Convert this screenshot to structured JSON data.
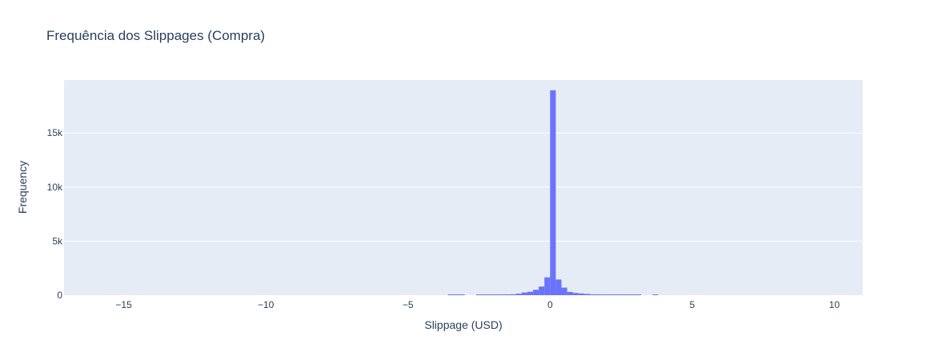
{
  "chart_data": {
    "type": "bar",
    "title": "Frequência dos Slippages (Compra)",
    "xlabel": "Slippage (USD)",
    "ylabel": "Frequency",
    "xlim": [
      -17.1,
      11.0
    ],
    "ylim": [
      0,
      19900
    ],
    "bin_width": 0.2,
    "x_ticks": [
      -15,
      -10,
      -5,
      0,
      5,
      10
    ],
    "x_tick_labels": [
      "−15",
      "−10",
      "−5",
      "0",
      "5",
      "10"
    ],
    "y_ticks": [
      0,
      5000,
      10000,
      15000
    ],
    "y_tick_labels": [
      "0",
      "5k",
      "10k",
      "15k"
    ],
    "grid": true,
    "bins": [
      {
        "x0": -3.6,
        "count": 40
      },
      {
        "x0": -3.4,
        "count": 40
      },
      {
        "x0": -3.2,
        "count": 40
      },
      {
        "x0": -2.6,
        "count": 40
      },
      {
        "x0": -2.4,
        "count": 40
      },
      {
        "x0": -2.2,
        "count": 40
      },
      {
        "x0": -2.0,
        "count": 50
      },
      {
        "x0": -1.8,
        "count": 60
      },
      {
        "x0": -1.6,
        "count": 70
      },
      {
        "x0": -1.4,
        "count": 90
      },
      {
        "x0": -1.2,
        "count": 140
      },
      {
        "x0": -1.0,
        "count": 250
      },
      {
        "x0": -0.8,
        "count": 320
      },
      {
        "x0": -0.6,
        "count": 500
      },
      {
        "x0": -0.4,
        "count": 800
      },
      {
        "x0": -0.2,
        "count": 1650
      },
      {
        "x0": 0.0,
        "count": 18950
      },
      {
        "x0": 0.2,
        "count": 1450
      },
      {
        "x0": 0.4,
        "count": 700
      },
      {
        "x0": 0.6,
        "count": 300
      },
      {
        "x0": 0.8,
        "count": 210
      },
      {
        "x0": 1.0,
        "count": 160
      },
      {
        "x0": 1.2,
        "count": 120
      },
      {
        "x0": 1.4,
        "count": 80
      },
      {
        "x0": 1.6,
        "count": 60
      },
      {
        "x0": 1.8,
        "count": 50
      },
      {
        "x0": 2.0,
        "count": 40
      },
      {
        "x0": 2.2,
        "count": 40
      },
      {
        "x0": 2.4,
        "count": 40
      },
      {
        "x0": 2.6,
        "count": 40
      },
      {
        "x0": 2.8,
        "count": 40
      },
      {
        "x0": 3.0,
        "count": 40
      },
      {
        "x0": 3.6,
        "count": 40
      }
    ],
    "colors": {
      "bar": "#636efa",
      "plot_bg": "#e5ecf6",
      "grid": "#ffffff",
      "text": "#2a3f5f"
    }
  }
}
